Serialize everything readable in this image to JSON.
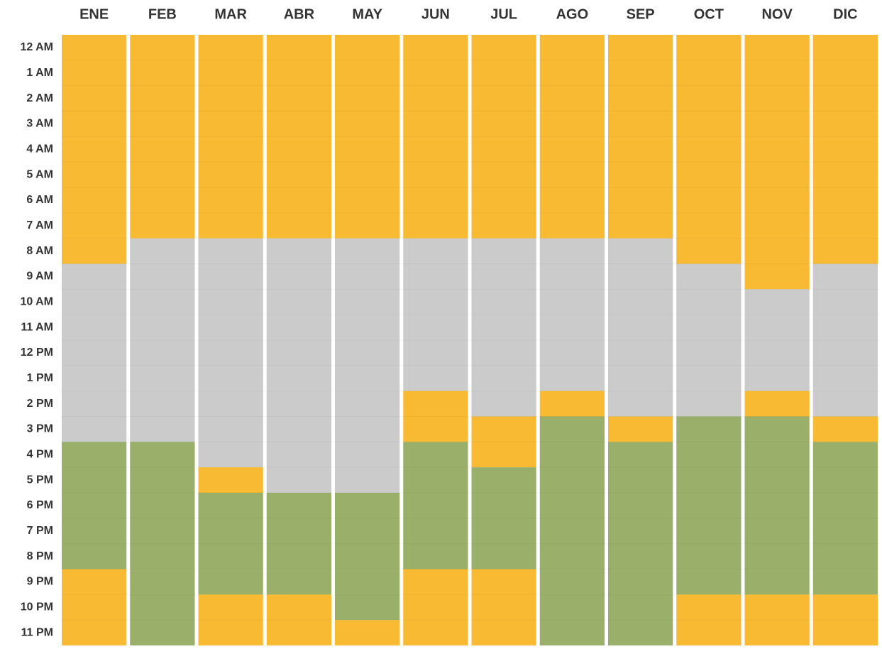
{
  "chart_data": {
    "type": "stacked_bar",
    "categories": [
      "ENE",
      "FEB",
      "MAR",
      "ABR",
      "MAY",
      "JUN",
      "JUL",
      "AGO",
      "SEP",
      "OCT",
      "NOV",
      "DIC"
    ],
    "hours": [
      "12 AM",
      "1 AM",
      "2 AM",
      "3 AM",
      "4 AM",
      "5 AM",
      "6 AM",
      "7 AM",
      "8 AM",
      "9 AM",
      "10 AM",
      "11 AM",
      "12 PM",
      "1 PM",
      "2 PM",
      "3 PM",
      "4 PM",
      "5 PM",
      "6 PM",
      "7 PM",
      "8 PM",
      "9 PM",
      "10 PM",
      "11 PM"
    ],
    "ylim": [
      0,
      24
    ],
    "series": [
      {
        "color": "#f8ba33",
        "values": [
          9,
          8,
          8,
          8,
          8,
          8,
          8,
          8,
          8,
          9,
          10,
          9
        ]
      },
      {
        "color": "#cbcbcb",
        "values": [
          7,
          8,
          9,
          10,
          10,
          6,
          7,
          6,
          7,
          6,
          4,
          6
        ]
      },
      {
        "color": "#f8ba33",
        "values": [
          0,
          0,
          1,
          0,
          0,
          2,
          2,
          1,
          1,
          0,
          1,
          1
        ]
      },
      {
        "color": "#9ab06a",
        "values": [
          5,
          8,
          4,
          4,
          5,
          5,
          4,
          9,
          8,
          7,
          7,
          6
        ]
      },
      {
        "color": "#f8ba33",
        "values": [
          3,
          0,
          2,
          2,
          1,
          3,
          3,
          0,
          0,
          2,
          2,
          2
        ]
      }
    ]
  }
}
